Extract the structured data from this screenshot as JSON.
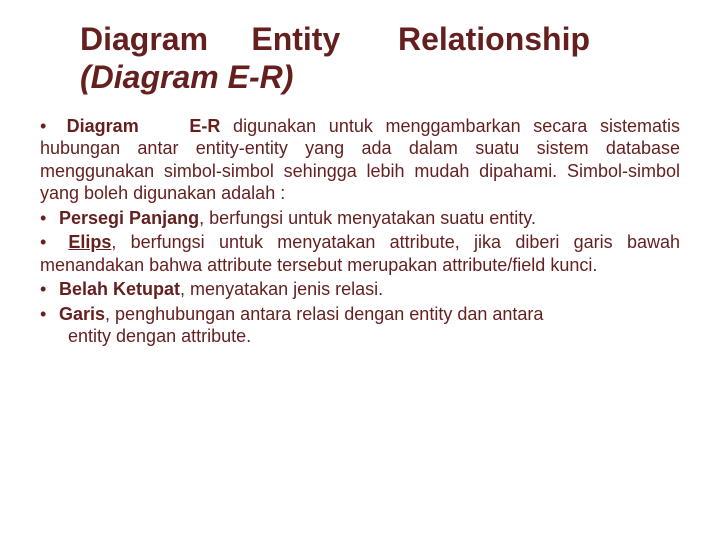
{
  "colors": {
    "text": "#651f1f",
    "background": "#ffffff"
  },
  "typography": {
    "title_fontsize": 32,
    "title_weight": 700,
    "body_fontsize": 18,
    "font_family": "Arial"
  },
  "title": {
    "line1_a": "Diagram",
    "line1_b": "Entity",
    "line1_c": "Relationship",
    "line2_open": "(",
    "line2_text": "Diagram E-R",
    "line2_close": ")"
  },
  "bullets": [
    {
      "lead_a": "Diagram",
      "lead_b": "E-R",
      "rest": " digunakan untuk menggambarkan secara sistematis hubungan antar entity-entity yang ada dalam suatu sistem database menggunakan simbol-simbol sehingga lebih mudah dipahami. Simbol-simbol yang boleh digunakan adalah :"
    },
    {
      "lead": "Persegi Panjang",
      "rest": ", berfungsi untuk menyatakan suatu entity."
    },
    {
      "lead": "Elips",
      "rest_a": ", berfungsi untuk menyatakan attribute, jika diberi garis bawah menandakan bahwa attribute tersebut merupakan attribute/field kunci."
    },
    {
      "lead": "Belah Ketupat",
      "rest": ", menyatakan jenis relasi."
    },
    {
      "lead": "Garis",
      "rest": ", penghubungan antara relasi dengan entity dan antara entity dengan attribute."
    }
  ],
  "dot": "•"
}
